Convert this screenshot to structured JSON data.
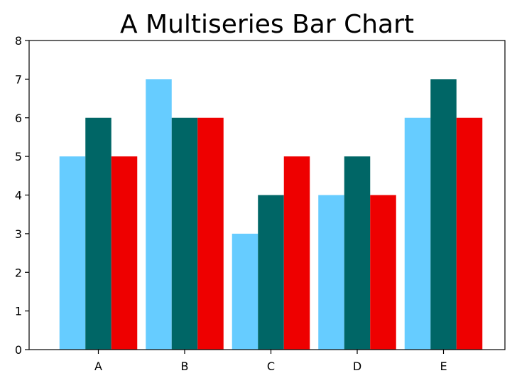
{
  "chart_data": {
    "type": "bar",
    "title": "A Multiseries Bar Chart",
    "xlabel": "",
    "ylabel": "",
    "categories": [
      "A",
      "B",
      "C",
      "D",
      "E"
    ],
    "series": [
      {
        "values": [
          5,
          7,
          3,
          4,
          6
        ],
        "color": "#66ccff"
      },
      {
        "values": [
          6,
          6,
          4,
          5,
          7
        ],
        "color": "#006666"
      },
      {
        "values": [
          5,
          6,
          5,
          4,
          6
        ],
        "color": "#ee0000"
      }
    ],
    "ylim": [
      0,
      8
    ],
    "yticks": [
      0,
      1,
      2,
      3,
      4,
      5,
      6,
      7,
      8
    ],
    "grid": false,
    "legend": "none"
  }
}
